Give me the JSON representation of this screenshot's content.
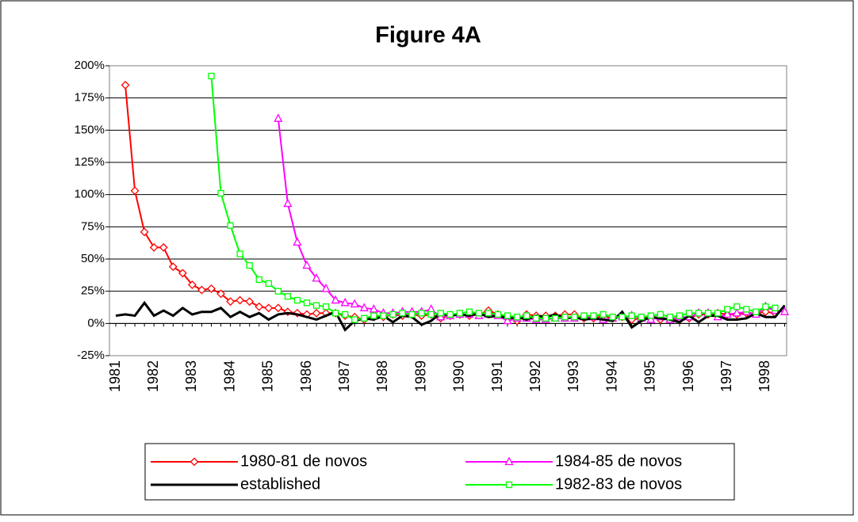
{
  "chart_data": {
    "type": "line",
    "title": "Figure 4A",
    "categories": [
      "1981",
      null,
      null,
      null,
      "1982",
      null,
      null,
      null,
      "1983",
      null,
      null,
      null,
      "1984",
      null,
      null,
      null,
      "1985",
      null,
      null,
      null,
      "1986",
      null,
      null,
      null,
      "1987",
      null,
      null,
      null,
      "1988",
      null,
      null,
      null,
      "1989",
      null,
      null,
      null,
      "1990",
      null,
      null,
      null,
      "1991",
      null,
      null,
      null,
      "1992",
      null,
      null,
      null,
      "1993",
      null,
      null,
      null,
      "1994",
      null,
      null,
      null,
      "1995",
      null,
      null,
      null,
      "1996",
      null,
      null,
      null,
      "1997",
      null,
      null,
      null,
      "1998",
      null,
      null
    ],
    "ylim": [
      -25,
      200
    ],
    "yticks": [
      {
        "value": -25,
        "label": "-25%"
      },
      {
        "value": 0,
        "label": "0%"
      },
      {
        "value": 25,
        "label": "25%"
      },
      {
        "value": 50,
        "label": "50%"
      },
      {
        "value": 75,
        "label": "75%"
      },
      {
        "value": 100,
        "label": "100%"
      },
      {
        "value": 125,
        "label": "125%"
      },
      {
        "value": 150,
        "label": "150%"
      },
      {
        "value": 175,
        "label": "175%"
      },
      {
        "value": 200,
        "label": "200%"
      }
    ],
    "grid": true,
    "series": [
      {
        "name": "1980-81 de novos",
        "color": "#ff0000",
        "marker": "diamond",
        "values": [
          null,
          185,
          103,
          71,
          59,
          59,
          44,
          39,
          30,
          26,
          27,
          23,
          17,
          18,
          17,
          13,
          12,
          12,
          9,
          8,
          7,
          8,
          8,
          8,
          6,
          5,
          3,
          5,
          5,
          7,
          6,
          7,
          6,
          7,
          4,
          6,
          7,
          6,
          7,
          10,
          7,
          5,
          2,
          7,
          6,
          6,
          6,
          7,
          7,
          4,
          4,
          6,
          4,
          5,
          3,
          4,
          5,
          3,
          4,
          3,
          4,
          7,
          7,
          8,
          7,
          7,
          8,
          8,
          9,
          8,
          null
        ]
      },
      {
        "name": "1984-85 de novos",
        "color": "#ff00ff",
        "marker": "triangle",
        "values": [
          null,
          null,
          null,
          null,
          null,
          null,
          null,
          null,
          null,
          null,
          null,
          null,
          null,
          null,
          null,
          null,
          null,
          159,
          93,
          63,
          45,
          35,
          27,
          18,
          16,
          15,
          12,
          11,
          8,
          8,
          9,
          9,
          9,
          11,
          5,
          6,
          7,
          7,
          6,
          7,
          6,
          2,
          4,
          4,
          3,
          3,
          4,
          4,
          4,
          5,
          5,
          3,
          4,
          5,
          6,
          4,
          3,
          5,
          3,
          5,
          5,
          8,
          8,
          5,
          7,
          8,
          9,
          7,
          13,
          10,
          9
        ]
      },
      {
        "name": "established",
        "color": "#000000",
        "marker": "none",
        "values": [
          6,
          7,
          6,
          16,
          6,
          10,
          6,
          12,
          7,
          9,
          9,
          12,
          5,
          9,
          5,
          8,
          3,
          7,
          8,
          7,
          5,
          3,
          6,
          9,
          -5,
          2,
          4,
          3,
          6,
          1,
          6,
          5,
          -1,
          2,
          8,
          6,
          7,
          6,
          8,
          5,
          6,
          4,
          5,
          3,
          6,
          5,
          7,
          4,
          5,
          3,
          4,
          3,
          2,
          9,
          -3,
          2,
          5,
          4,
          3,
          1,
          6,
          1,
          6,
          6,
          3,
          3,
          4,
          8,
          5,
          5,
          14
        ]
      },
      {
        "name": "1982-83 de novos",
        "color": "#00ff00",
        "marker": "square",
        "values": [
          null,
          null,
          null,
          null,
          null,
          null,
          null,
          null,
          null,
          null,
          192,
          101,
          76,
          54,
          45,
          34,
          31,
          25,
          21,
          18,
          16,
          14,
          13,
          8,
          7,
          3,
          4,
          6,
          6,
          7,
          8,
          7,
          8,
          7,
          8,
          7,
          8,
          9,
          8,
          8,
          7,
          6,
          5,
          6,
          4,
          4,
          4,
          5,
          5,
          6,
          6,
          7,
          5,
          5,
          6,
          5,
          6,
          7,
          5,
          6,
          8,
          8,
          8,
          8,
          11,
          13,
          11,
          9,
          13,
          12,
          null
        ]
      }
    ]
  }
}
